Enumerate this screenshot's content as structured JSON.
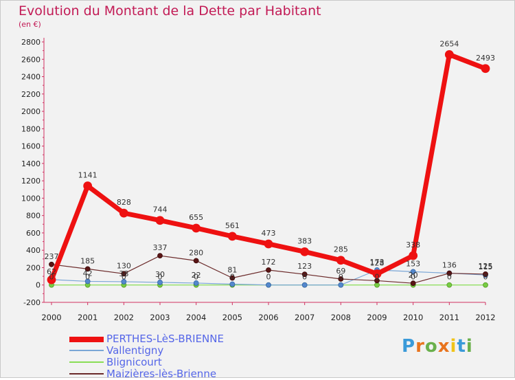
{
  "title": "Evolution du Montant de la Dette par Habitant",
  "subtitle": "(en €)",
  "chart_data": {
    "type": "line",
    "title": "Evolution du Montant de la Dette par Habitant",
    "subtitle": "(en €)",
    "xlabel": "",
    "ylabel": "",
    "categories": [
      "2000",
      "2001",
      "2002",
      "2003",
      "2004",
      "2005",
      "2006",
      "2007",
      "2008",
      "2009",
      "2010",
      "2011",
      "2012"
    ],
    "ylim": [
      -200,
      2800
    ],
    "y_ticks": [
      "-200",
      "0",
      "200",
      "400",
      "600",
      "800",
      "1000",
      "1200",
      "1400",
      "1600",
      "1800",
      "2000",
      "2200",
      "2400",
      "2600",
      "2800"
    ],
    "grid": false,
    "legend_position": "bottom-left",
    "series": [
      {
        "name": "PERTHES-LèS-BRIENNE",
        "color": "#ee1111",
        "values": [
          60,
          1141,
          828,
          744,
          655,
          561,
          473,
          383,
          285,
          128,
          338,
          2654,
          2493
        ],
        "labels": [
          "",
          "1141",
          "828",
          "744",
          "655",
          "561",
          "473",
          "383",
          "285",
          "128",
          "338",
          "2654",
          "2493"
        ]
      },
      {
        "name": "Vallentigny",
        "color": "#7aa6d6",
        "values": [
          62,
          42,
          38,
          30,
          22,
          10,
          0,
          0,
          0,
          173,
          153,
          136,
          115
        ],
        "labels": [
          "62",
          "42",
          "38",
          "30",
          "22",
          "",
          "",
          "",
          "",
          "173",
          "153",
          "136",
          "115"
        ]
      },
      {
        "name": "Blignicourt",
        "color": "#88dd55",
        "values": [
          0,
          0,
          0,
          0,
          0,
          0,
          0,
          0,
          0,
          0,
          0,
          0,
          0
        ],
        "labels": [
          "0",
          "0",
          "0",
          "0",
          "0",
          "0",
          "0",
          "0",
          "0",
          "0",
          "0",
          "0",
          "0"
        ]
      },
      {
        "name": "Maizières-lès-Brienne",
        "color": "#6b2a2a",
        "values": [
          237,
          185,
          130,
          337,
          280,
          81,
          172,
          123,
          69,
          50,
          20,
          135,
          125
        ],
        "labels": [
          "237",
          "185",
          "130",
          "337",
          "280",
          "81",
          "172",
          "123",
          "69",
          "",
          "20",
          "",
          "125"
        ]
      }
    ]
  },
  "legend": [
    {
      "label": "PERTHES-LèS-BRIENNE",
      "color": "#ee1111"
    },
    {
      "label": "Vallentigny",
      "color": "#7aa6d6"
    },
    {
      "label": "Blignicourt",
      "color": "#88dd55"
    },
    {
      "label": "Maizières-lès-Brienne",
      "color": "#6b2a2a"
    }
  ],
  "brand": {
    "text": "Proxiti",
    "colors": [
      "#3a9ad9",
      "#e8741e",
      "#6ab04c",
      "#e8741e",
      "#f0c419",
      "#3a9ad9",
      "#6ab04c"
    ]
  }
}
